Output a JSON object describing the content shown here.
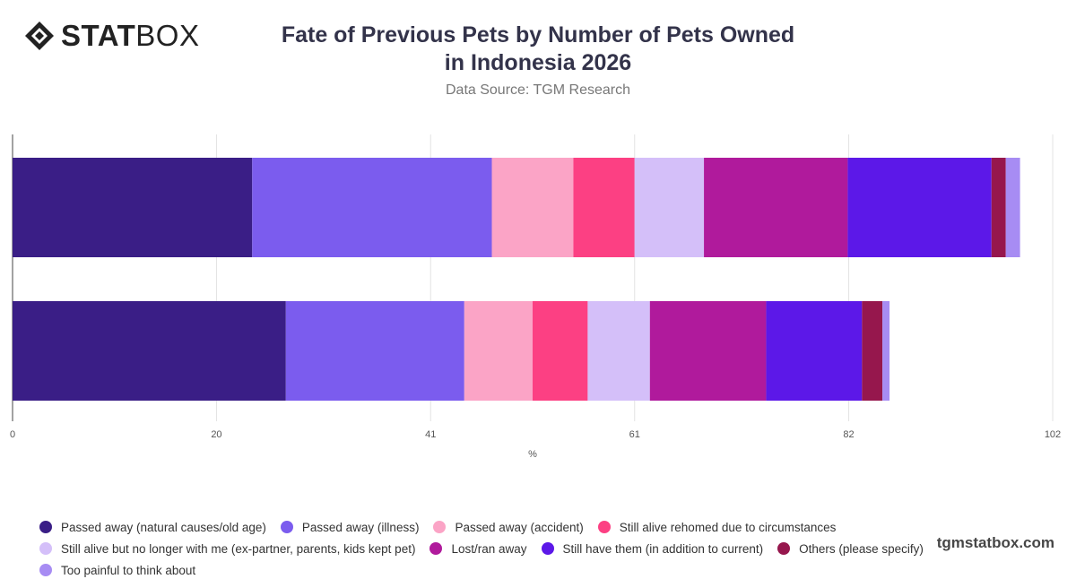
{
  "brand": {
    "logo_bold": "STAT",
    "logo_light": "BOX",
    "watermark": "tgmstatbox.com"
  },
  "header": {
    "title": "Fate of Previous Pets by Number of Pets Owned in Indonesia 2026",
    "subtitle": "Data Source: TGM Research"
  },
  "chart_data": {
    "type": "bar",
    "orientation": "horizontal",
    "stacked": true,
    "categories": [
      "",
      ""
    ],
    "xlabel": "%",
    "ylabel": "",
    "xlim": [
      0,
      102
    ],
    "xticks": [
      0,
      20,
      41,
      61,
      82,
      102
    ],
    "grid": true,
    "legend_position": "bottom",
    "series": [
      {
        "name": "Passed away (natural causes/old age)",
        "color": "#3a1e86",
        "values": [
          23.5,
          26.8
        ]
      },
      {
        "name": "Passed away (illness)",
        "color": "#7b5cee",
        "values": [
          23.5,
          17.5
        ]
      },
      {
        "name": "Passed away (accident)",
        "color": "#fba4c6",
        "values": [
          8.0,
          6.7
        ]
      },
      {
        "name": "Still alive rehomed due to circumstances",
        "color": "#fc4083",
        "values": [
          6.0,
          5.4
        ]
      },
      {
        "name": "Still alive but no longer with me (ex-partner, parents, kids kept pet)",
        "color": "#d4bff9",
        "values": [
          6.8,
          6.1
        ]
      },
      {
        "name": "Lost/ran away",
        "color": "#b01a9c",
        "values": [
          14.1,
          11.4
        ]
      },
      {
        "name": "Still have them (in addition to current)",
        "color": "#5c18e8",
        "values": [
          14.1,
          9.4
        ]
      },
      {
        "name": "Others (please specify)",
        "color": "#96174d",
        "values": [
          1.4,
          2.0
        ]
      },
      {
        "name": "Too painful to think about",
        "color": "#a78cf3",
        "values": [
          1.4,
          0.7
        ]
      }
    ]
  }
}
